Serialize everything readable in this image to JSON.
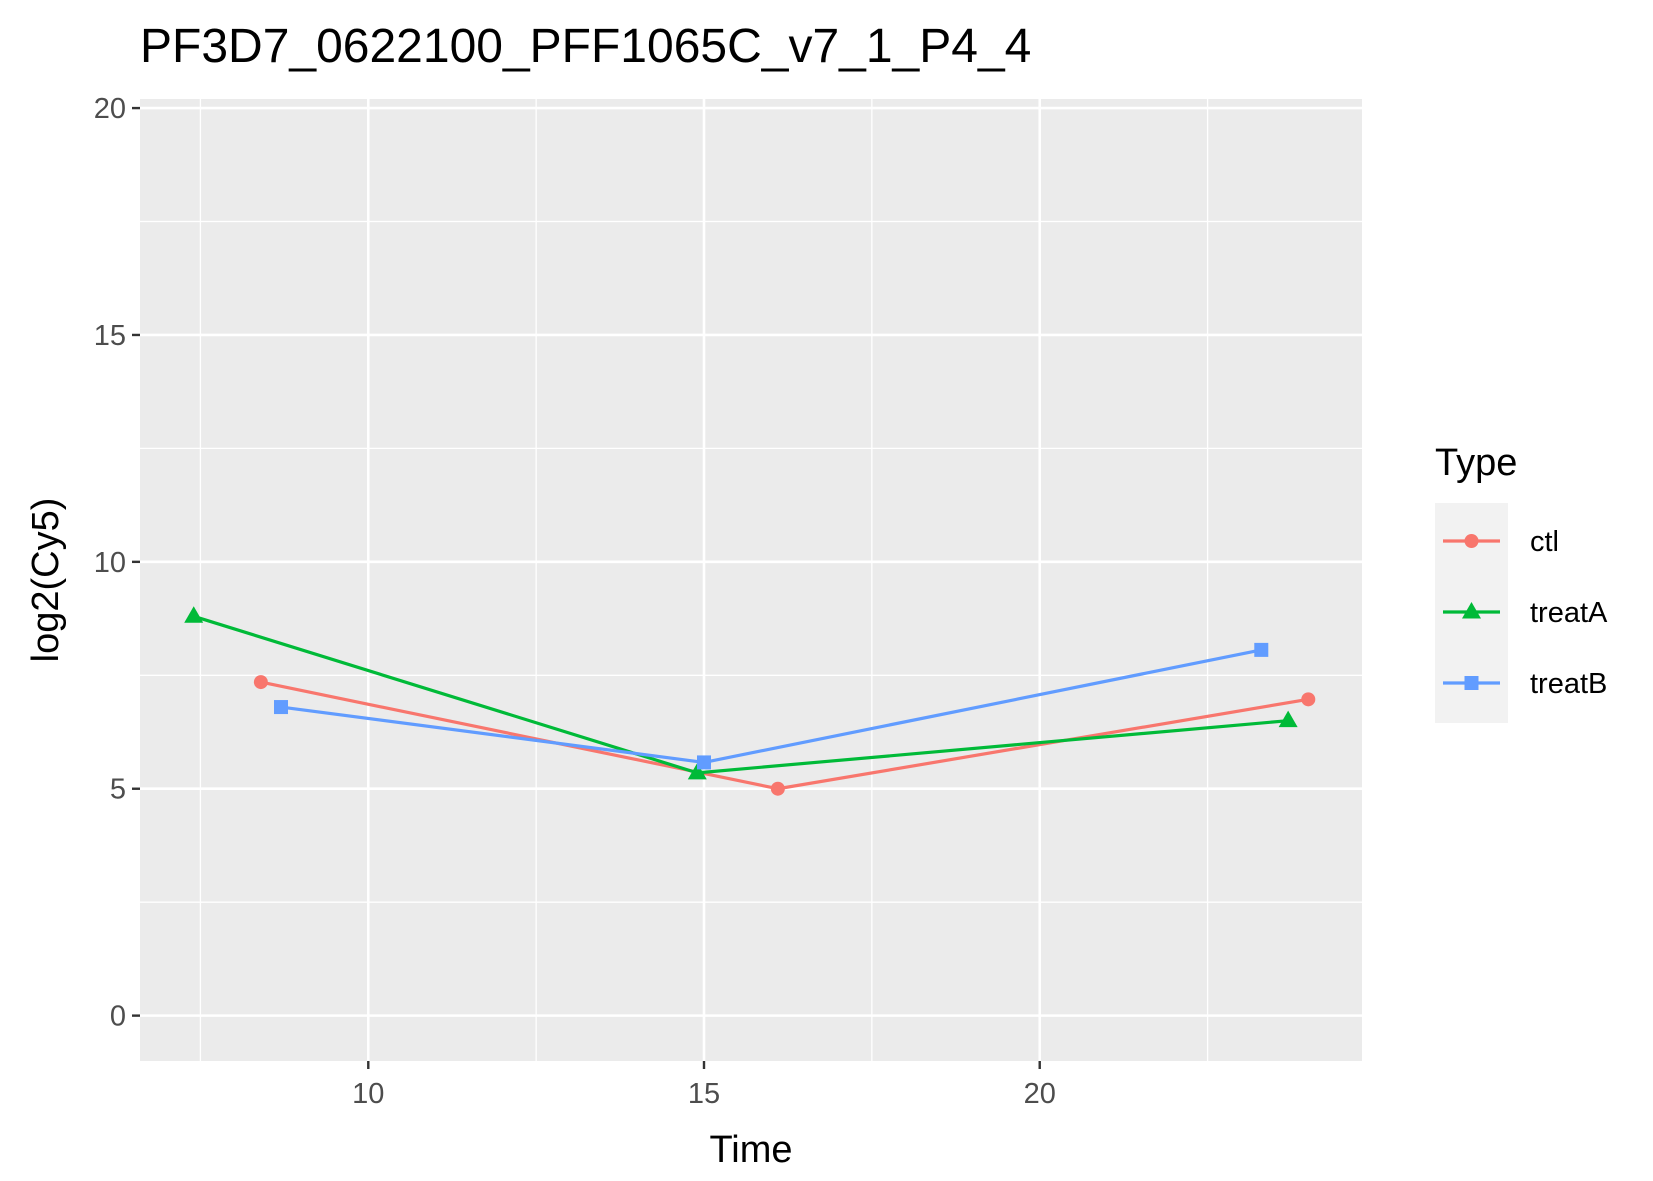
{
  "chart_data": {
    "type": "line",
    "title": "PF3D7_0622100_PFF1065C_v7_1_P4_4",
    "xlabel": "Time",
    "ylabel": "log2(Cy5)",
    "xlim": [
      6.6,
      24.8
    ],
    "ylim": [
      -1,
      20.2
    ],
    "x_ticks": [
      10,
      15,
      20
    ],
    "y_ticks": [
      0,
      5,
      10,
      15,
      20
    ],
    "x_tick_labels": [
      "10",
      "15",
      "20"
    ],
    "y_tick_labels": [
      "0",
      "5",
      "10",
      "15",
      "20"
    ],
    "grid": true,
    "legend": {
      "title": "Type",
      "position": "right"
    },
    "series": [
      {
        "name": "ctl",
        "color": "#F8766D",
        "marker": "circle",
        "x": [
          8.4,
          16.1,
          24.0
        ],
        "y": [
          7.35,
          5.0,
          6.97
        ]
      },
      {
        "name": "treatA",
        "color": "#00BA38",
        "marker": "triangle",
        "x": [
          7.4,
          14.9,
          23.7
        ],
        "y": [
          8.8,
          5.35,
          6.5
        ]
      },
      {
        "name": "treatB",
        "color": "#619CFF",
        "marker": "square",
        "x": [
          8.7,
          15.0,
          23.3
        ],
        "y": [
          6.8,
          5.58,
          8.06
        ]
      }
    ]
  }
}
